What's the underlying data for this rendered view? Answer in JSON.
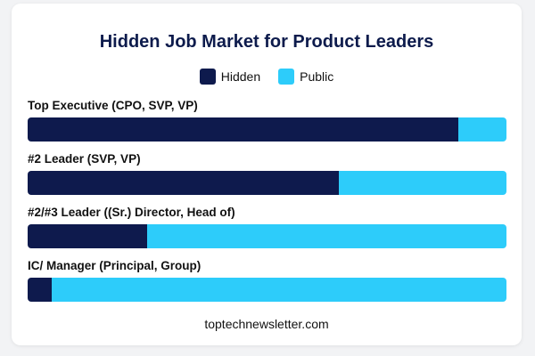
{
  "chart_data": {
    "type": "bar",
    "orientation": "horizontal",
    "stacked": true,
    "title": "Hidden Job Market for Product Leaders",
    "legend_position": "top-center",
    "grid": false,
    "xlim": [
      0,
      100
    ],
    "categories": [
      "Top Executive (CPO, SVP, VP)",
      "#2 Leader (SVP, VP)",
      "#2/#3 Leader ((Sr.) Director, Head of)",
      "IC/ Manager (Principal, Group)"
    ],
    "series": [
      {
        "name": "Hidden",
        "color": "#0e1a4d",
        "values": [
          90,
          65,
          25,
          5
        ]
      },
      {
        "name": "Public",
        "color": "#2dccfa",
        "values": [
          10,
          35,
          75,
          95
        ]
      }
    ],
    "footer": "toptechnewsletter.com"
  }
}
